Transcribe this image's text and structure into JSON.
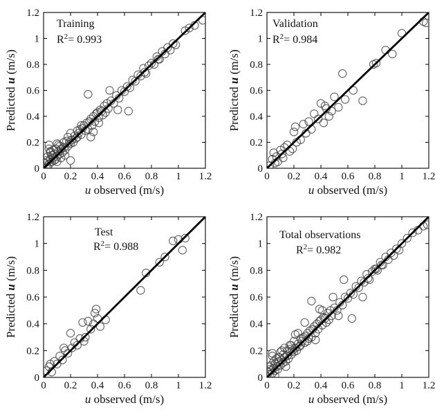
{
  "chart_data": [
    {
      "type": "scatter",
      "panel": "Training",
      "label": "Training",
      "r2_prefix": "R",
      "r2_sup": "2",
      "r2_value": "= 0.993",
      "xlabel_var": "u",
      "xlabel_rest": " observed (m/s)",
      "ylabel_pre": "Predicted ",
      "ylabel_var": "u",
      "ylabel_post": " (m/s)",
      "xlim": [
        0,
        1.2
      ],
      "ylim": [
        0,
        1.2
      ],
      "xticks": [
        "0",
        "0.2",
        "0.4",
        "0.6",
        "0.8",
        "1",
        "1.2"
      ],
      "yticks": [
        "0",
        "0.2",
        "0.4",
        "0.6",
        "0.8",
        "1",
        "1.2"
      ],
      "fit_line": {
        "x": [
          0,
          1.2
        ],
        "y": [
          0,
          1.2
        ]
      },
      "x": [
        0.01,
        0.02,
        0.02,
        0.03,
        0.03,
        0.04,
        0.04,
        0.05,
        0.05,
        0.06,
        0.06,
        0.07,
        0.07,
        0.08,
        0.08,
        0.09,
        0.1,
        0.1,
        0.11,
        0.12,
        0.12,
        0.13,
        0.14,
        0.15,
        0.15,
        0.16,
        0.17,
        0.18,
        0.18,
        0.19,
        0.2,
        0.2,
        0.21,
        0.22,
        0.23,
        0.24,
        0.25,
        0.25,
        0.26,
        0.27,
        0.28,
        0.29,
        0.3,
        0.31,
        0.32,
        0.33,
        0.34,
        0.35,
        0.36,
        0.37,
        0.38,
        0.39,
        0.4,
        0.41,
        0.42,
        0.43,
        0.44,
        0.45,
        0.46,
        0.47,
        0.48,
        0.5,
        0.52,
        0.54,
        0.56,
        0.58,
        0.6,
        0.62,
        0.64,
        0.66,
        0.68,
        0.7,
        0.72,
        0.74,
        0.76,
        0.78,
        0.8,
        0.82,
        0.84,
        0.86,
        0.88,
        0.9,
        0.92,
        0.94,
        0.96,
        0.98,
        1.05,
        1.08,
        1.12,
        1.18,
        0.03,
        0.05,
        0.07,
        0.09,
        0.11,
        0.13,
        0.33,
        0.35,
        0.41,
        0.49,
        0.55,
        0.63,
        0.75,
        0.85,
        0.2,
        0.04,
        0.1,
        0.16,
        0.28,
        0.37
      ],
      "y": [
        0.04,
        0.02,
        0.06,
        0.05,
        0.09,
        0.03,
        0.18,
        0.07,
        0.12,
        0.05,
        0.1,
        0.14,
        0.08,
        0.11,
        0.06,
        0.15,
        0.09,
        0.19,
        0.13,
        0.11,
        0.17,
        0.15,
        0.12,
        0.16,
        0.2,
        0.14,
        0.21,
        0.17,
        0.24,
        0.2,
        0.19,
        0.27,
        0.22,
        0.2,
        0.25,
        0.23,
        0.24,
        0.29,
        0.27,
        0.3,
        0.26,
        0.31,
        0.33,
        0.29,
        0.35,
        0.3,
        0.36,
        0.38,
        0.33,
        0.4,
        0.36,
        0.42,
        0.43,
        0.39,
        0.45,
        0.44,
        0.41,
        0.48,
        0.43,
        0.5,
        0.46,
        0.52,
        0.5,
        0.56,
        0.54,
        0.6,
        0.59,
        0.63,
        0.62,
        0.68,
        0.67,
        0.72,
        0.71,
        0.77,
        0.73,
        0.79,
        0.81,
        0.8,
        0.86,
        0.84,
        0.9,
        0.88,
        0.93,
        0.91,
        0.96,
        0.95,
        1.06,
        1.08,
        1.1,
        1.14,
        0.01,
        0.13,
        0.1,
        0.07,
        0.18,
        0.08,
        0.57,
        0.24,
        0.35,
        0.6,
        0.45,
        0.44,
        0.74,
        0.84,
        0.06,
        0.15,
        0.05,
        0.1,
        0.33,
        0.28
      ]
    },
    {
      "type": "scatter",
      "panel": "Validation",
      "label": "Validation",
      "r2_prefix": "R",
      "r2_sup": "2",
      "r2_value": "= 0.984",
      "xlabel_var": "u",
      "xlabel_rest": " observed (m/s)",
      "ylabel_pre": "Predicted ",
      "ylabel_var": "u",
      "ylabel_post": " (m/s)",
      "xlim": [
        0,
        1.2
      ],
      "ylim": [
        0,
        1.2
      ],
      "xticks": [
        "0",
        "0.2",
        "0.4",
        "0.6",
        "0.8",
        "1",
        "1.2"
      ],
      "yticks": [
        "0",
        "0.2",
        "0.4",
        "0.6",
        "0.8",
        "1",
        "1.2"
      ],
      "fit_line": {
        "x": [
          0,
          1.2
        ],
        "y": [
          0,
          1.2
        ]
      },
      "x": [
        0.02,
        0.04,
        0.05,
        0.07,
        0.08,
        0.1,
        0.11,
        0.13,
        0.15,
        0.17,
        0.19,
        0.21,
        0.22,
        0.25,
        0.27,
        0.29,
        0.31,
        0.33,
        0.35,
        0.38,
        0.4,
        0.42,
        0.44,
        0.46,
        0.48,
        0.5,
        0.53,
        0.56,
        0.58,
        0.64,
        0.71,
        0.79,
        0.81,
        0.88,
        0.93,
        1.0,
        1.16,
        1.18,
        0.06,
        0.12,
        0.2,
        0.43
      ],
      "y": [
        0.02,
        0.07,
        0.12,
        0.09,
        0.05,
        0.14,
        0.11,
        0.16,
        0.18,
        0.13,
        0.15,
        0.32,
        0.2,
        0.22,
        0.34,
        0.27,
        0.36,
        0.3,
        0.42,
        0.38,
        0.5,
        0.35,
        0.46,
        0.4,
        0.44,
        0.55,
        0.47,
        0.73,
        0.53,
        0.6,
        0.52,
        0.8,
        0.81,
        0.91,
        0.88,
        1.04,
        1.13,
        1.12,
        0.04,
        0.08,
        0.28,
        0.48
      ]
    },
    {
      "type": "scatter",
      "panel": "Test",
      "label": "Test",
      "r2_prefix": "R",
      "r2_sup": "2",
      "r2_value": "= 0.988",
      "xlabel_var": "u",
      "xlabel_rest": " observed (m/s)",
      "ylabel_pre": "Predicted ",
      "ylabel_var": "u",
      "ylabel_post": " (m/s)",
      "xlim": [
        0,
        1.2
      ],
      "ylim": [
        0,
        1.2
      ],
      "xticks": [
        "0",
        "0.2",
        "0.4",
        "0.6",
        "0.8",
        "1",
        "1.2"
      ],
      "yticks": [
        "0",
        "0.2",
        "0.4",
        "0.6",
        "0.8",
        "1",
        "1.2"
      ],
      "fit_line": {
        "x": [
          0,
          1.2
        ],
        "y": [
          0,
          1.2
        ]
      },
      "x": [
        0.02,
        0.04,
        0.06,
        0.08,
        0.1,
        0.12,
        0.14,
        0.16,
        0.18,
        0.2,
        0.21,
        0.23,
        0.25,
        0.27,
        0.29,
        0.31,
        0.33,
        0.35,
        0.37,
        0.38,
        0.39,
        0.4,
        0.42,
        0.46,
        0.72,
        0.76,
        0.86,
        0.9,
        0.96,
        1.0,
        1.03,
        1.05,
        0.05,
        0.15,
        0.3
      ],
      "y": [
        0.05,
        0.08,
        0.04,
        0.12,
        0.1,
        0.16,
        0.13,
        0.2,
        0.18,
        0.33,
        0.22,
        0.26,
        0.24,
        0.29,
        0.41,
        0.3,
        0.42,
        0.36,
        0.4,
        0.48,
        0.51,
        0.44,
        0.38,
        0.43,
        0.65,
        0.78,
        0.86,
        0.9,
        1.02,
        1.03,
        0.95,
        1.04,
        0.1,
        0.22,
        0.27
      ]
    },
    {
      "type": "scatter",
      "panel": "Total observations",
      "label": "Total observations",
      "r2_prefix": "R",
      "r2_sup": "2",
      "r2_value": "= 0.982",
      "xlabel_var": "u",
      "xlabel_rest": " observed (m/s)",
      "ylabel_pre": "Predicted ",
      "ylabel_var": "u",
      "ylabel_post": " (m/s)",
      "xlim": [
        0,
        1.2
      ],
      "ylim": [
        0,
        1.2
      ],
      "xticks": [
        "0",
        "0.2",
        "0.4",
        "0.6",
        "0.8",
        "1",
        "1.2"
      ],
      "yticks": [
        "0",
        "0.2",
        "0.4",
        "0.6",
        "0.8",
        "1",
        "1.2"
      ],
      "fit_line": {
        "x": [
          0,
          1.2
        ],
        "y": [
          0,
          1.2
        ]
      },
      "x": [
        0.01,
        0.02,
        0.02,
        0.03,
        0.03,
        0.04,
        0.04,
        0.05,
        0.05,
        0.06,
        0.06,
        0.07,
        0.07,
        0.08,
        0.08,
        0.09,
        0.1,
        0.1,
        0.11,
        0.12,
        0.12,
        0.13,
        0.14,
        0.15,
        0.15,
        0.16,
        0.17,
        0.18,
        0.18,
        0.19,
        0.2,
        0.2,
        0.21,
        0.22,
        0.23,
        0.24,
        0.25,
        0.25,
        0.26,
        0.27,
        0.28,
        0.29,
        0.3,
        0.31,
        0.32,
        0.33,
        0.34,
        0.35,
        0.36,
        0.37,
        0.38,
        0.39,
        0.4,
        0.41,
        0.42,
        0.43,
        0.44,
        0.45,
        0.46,
        0.47,
        0.48,
        0.5,
        0.52,
        0.54,
        0.56,
        0.58,
        0.6,
        0.62,
        0.64,
        0.66,
        0.68,
        0.7,
        0.72,
        0.74,
        0.76,
        0.78,
        0.8,
        0.82,
        0.84,
        0.86,
        0.88,
        0.9,
        0.92,
        0.94,
        0.96,
        0.98,
        1.0,
        1.04,
        1.08,
        1.12,
        1.16,
        1.19,
        0.04,
        0.06,
        0.09,
        0.11,
        0.14,
        0.17,
        0.23,
        0.28,
        0.33,
        0.36,
        0.41,
        0.49,
        0.53,
        0.57,
        0.63,
        0.71,
        0.75,
        0.81,
        0.85,
        0.21,
        0.3,
        0.39,
        0.02,
        0.13
      ],
      "y": [
        0.04,
        0.02,
        0.06,
        0.05,
        0.09,
        0.03,
        0.18,
        0.07,
        0.12,
        0.05,
        0.1,
        0.14,
        0.08,
        0.11,
        0.06,
        0.15,
        0.09,
        0.19,
        0.13,
        0.11,
        0.17,
        0.15,
        0.12,
        0.16,
        0.2,
        0.14,
        0.21,
        0.17,
        0.24,
        0.2,
        0.19,
        0.27,
        0.22,
        0.2,
        0.25,
        0.23,
        0.24,
        0.29,
        0.27,
        0.3,
        0.26,
        0.31,
        0.33,
        0.29,
        0.35,
        0.3,
        0.36,
        0.38,
        0.33,
        0.4,
        0.36,
        0.42,
        0.43,
        0.39,
        0.45,
        0.44,
        0.41,
        0.48,
        0.43,
        0.5,
        0.46,
        0.52,
        0.5,
        0.56,
        0.54,
        0.6,
        0.59,
        0.63,
        0.62,
        0.68,
        0.67,
        0.72,
        0.71,
        0.77,
        0.73,
        0.79,
        0.81,
        0.8,
        0.86,
        0.84,
        0.9,
        0.88,
        0.93,
        0.91,
        0.96,
        0.95,
        1.0,
        1.04,
        1.08,
        1.1,
        1.13,
        1.14,
        0.16,
        0.01,
        0.12,
        0.2,
        0.08,
        0.24,
        0.33,
        0.41,
        0.57,
        0.28,
        0.5,
        0.6,
        0.46,
        0.73,
        0.44,
        0.6,
        0.74,
        0.81,
        0.84,
        0.32,
        0.27,
        0.51,
        0.08,
        0.22
      ]
    }
  ]
}
